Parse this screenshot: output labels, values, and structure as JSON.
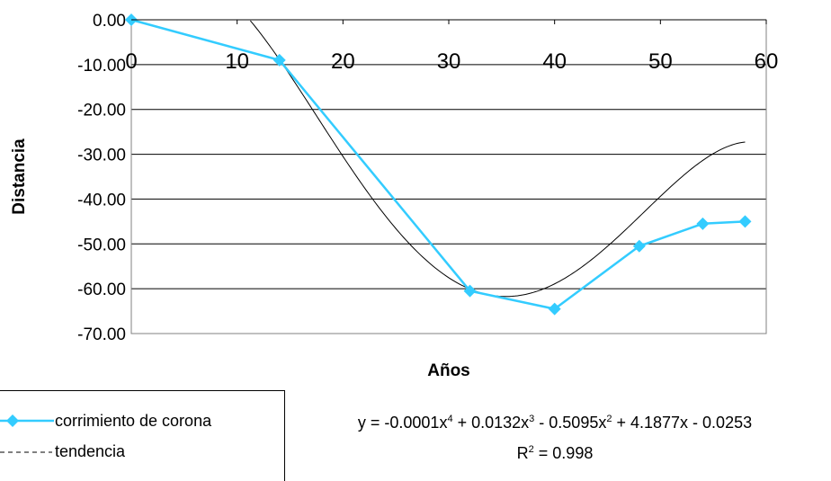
{
  "chart_data": {
    "type": "line",
    "xlabel": "Años",
    "ylabel": "Distancia",
    "xlim": [
      0,
      60
    ],
    "ylim": [
      -70,
      0
    ],
    "x_ticks": [
      "0",
      "10",
      "20",
      "30",
      "40",
      "50",
      "60"
    ],
    "y_ticks": [
      "0.00",
      "-10.00",
      "-20.00",
      "-30.00",
      "-40.00",
      "-50.00",
      "-60.00",
      "-70.00"
    ],
    "grid": "horizontal",
    "x_axis_position": "top",
    "series": [
      {
        "name": "corrimiento de corona",
        "color": "#33CCFF",
        "marker": "diamond",
        "x": [
          0,
          14,
          32,
          40,
          48,
          54,
          58
        ],
        "y": [
          0,
          -9,
          -60.5,
          -64.5,
          -50.5,
          -45.5,
          -45
        ]
      }
    ],
    "trendline": {
      "name": "tendencia",
      "type": "polynomial",
      "order": 4,
      "coefficients": [
        -0.0001,
        0.0132,
        -0.5095,
        4.1877,
        -0.0253
      ],
      "color": "#000000"
    },
    "legend": {
      "placement": "bottom-left"
    },
    "equation": {
      "c4": "-0.0001",
      "c3": "0.0132",
      "c2": "0.5095",
      "c1": "4.1877",
      "c0": "0.0253",
      "r2_value": "0.998"
    }
  }
}
